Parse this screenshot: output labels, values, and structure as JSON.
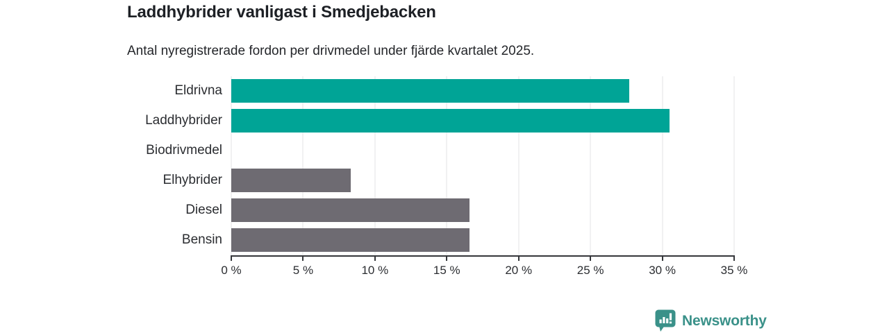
{
  "chart_data": {
    "type": "bar",
    "orientation": "horizontal",
    "title": "Laddhybrider vanligast i Smedjebacken",
    "subtitle": "Antal nyregistrerade fordon per drivmedel under fjärde kvartalet 2025.",
    "categories": [
      "Eldrivna",
      "Laddhybrider",
      "Biodrivmedel",
      "Elhybrider",
      "Diesel",
      "Bensin"
    ],
    "values": [
      27.7,
      30.5,
      0,
      8.3,
      16.6,
      16.6
    ],
    "unit": "%",
    "bar_colors": [
      "#00a496",
      "#00a496",
      "#00a496",
      "#6e6b72",
      "#6e6b72",
      "#6e6b72"
    ],
    "xlim": [
      0,
      35
    ],
    "x_ticks": [
      0,
      5,
      10,
      15,
      20,
      25,
      30,
      35
    ],
    "x_tick_labels": [
      "0 %",
      "5 %",
      "10 %",
      "15 %",
      "20 %",
      "25 %",
      "30 %",
      "35 %"
    ],
    "xlabel": "",
    "ylabel": "",
    "grid": "vertical",
    "legend": "none"
  },
  "colors": {
    "accent_teal": "#00a496",
    "neutral_gray": "#6e6b72",
    "gridline": "#e3e3e6",
    "axis": "#34363a",
    "text": "#2b2d31",
    "logo_teal": "#3a9189"
  },
  "branding": {
    "logo_text": "Newsworthy",
    "logo_icon": "bar-chart-speech-bubble-icon"
  }
}
